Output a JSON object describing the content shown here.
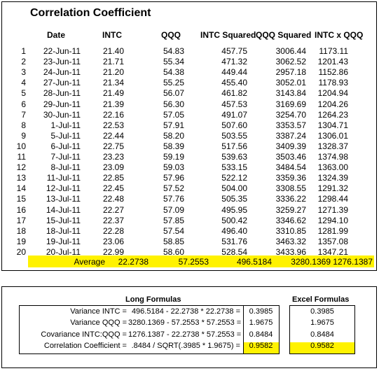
{
  "title": "Correlation Coefficient",
  "headers": [
    "Date",
    "INTC",
    "QQQ",
    "INTC Squared",
    "QQQ Squared",
    "INTC x QQQ"
  ],
  "rows": [
    {
      "n": "1",
      "date": "22-Jun-11",
      "intc": "21.40",
      "qqq": "54.83",
      "intc_sq": "457.75",
      "qqq_sq": "3006.44",
      "prod": "1173.11"
    },
    {
      "n": "2",
      "date": "23-Jun-11",
      "intc": "21.71",
      "qqq": "55.34",
      "intc_sq": "471.32",
      "qqq_sq": "3062.52",
      "prod": "1201.43"
    },
    {
      "n": "3",
      "date": "24-Jun-11",
      "intc": "21.20",
      "qqq": "54.38",
      "intc_sq": "449.44",
      "qqq_sq": "2957.18",
      "prod": "1152.86"
    },
    {
      "n": "4",
      "date": "27-Jun-11",
      "intc": "21.34",
      "qqq": "55.25",
      "intc_sq": "455.40",
      "qqq_sq": "3052.01",
      "prod": "1178.93"
    },
    {
      "n": "5",
      "date": "28-Jun-11",
      "intc": "21.49",
      "qqq": "56.07",
      "intc_sq": "461.82",
      "qqq_sq": "3143.84",
      "prod": "1204.94"
    },
    {
      "n": "6",
      "date": "29-Jun-11",
      "intc": "21.39",
      "qqq": "56.30",
      "intc_sq": "457.53",
      "qqq_sq": "3169.69",
      "prod": "1204.26"
    },
    {
      "n": "7",
      "date": "30-Jun-11",
      "intc": "22.16",
      "qqq": "57.05",
      "intc_sq": "491.07",
      "qqq_sq": "3254.70",
      "prod": "1264.23"
    },
    {
      "n": "8",
      "date": "1-Jul-11",
      "intc": "22.53",
      "qqq": "57.91",
      "intc_sq": "507.60",
      "qqq_sq": "3353.57",
      "prod": "1304.71"
    },
    {
      "n": "9",
      "date": "5-Jul-11",
      "intc": "22.44",
      "qqq": "58.20",
      "intc_sq": "503.55",
      "qqq_sq": "3387.24",
      "prod": "1306.01"
    },
    {
      "n": "10",
      "date": "6-Jul-11",
      "intc": "22.75",
      "qqq": "58.39",
      "intc_sq": "517.56",
      "qqq_sq": "3409.39",
      "prod": "1328.37"
    },
    {
      "n": "11",
      "date": "7-Jul-11",
      "intc": "23.23",
      "qqq": "59.19",
      "intc_sq": "539.63",
      "qqq_sq": "3503.46",
      "prod": "1374.98"
    },
    {
      "n": "12",
      "date": "8-Jul-11",
      "intc": "23.09",
      "qqq": "59.03",
      "intc_sq": "533.15",
      "qqq_sq": "3484.54",
      "prod": "1363.00"
    },
    {
      "n": "13",
      "date": "11-Jul-11",
      "intc": "22.85",
      "qqq": "57.96",
      "intc_sq": "522.12",
      "qqq_sq": "3359.36",
      "prod": "1324.39"
    },
    {
      "n": "14",
      "date": "12-Jul-11",
      "intc": "22.45",
      "qqq": "57.52",
      "intc_sq": "504.00",
      "qqq_sq": "3308.55",
      "prod": "1291.32"
    },
    {
      "n": "15",
      "date": "13-Jul-11",
      "intc": "22.48",
      "qqq": "57.76",
      "intc_sq": "505.35",
      "qqq_sq": "3336.22",
      "prod": "1298.44"
    },
    {
      "n": "16",
      "date": "14-Jul-11",
      "intc": "22.27",
      "qqq": "57.09",
      "intc_sq": "495.95",
      "qqq_sq": "3259.27",
      "prod": "1271.39"
    },
    {
      "n": "17",
      "date": "15-Jul-11",
      "intc": "22.37",
      "qqq": "57.85",
      "intc_sq": "500.42",
      "qqq_sq": "3346.62",
      "prod": "1294.10"
    },
    {
      "n": "18",
      "date": "18-Jul-11",
      "intc": "22.28",
      "qqq": "57.54",
      "intc_sq": "496.40",
      "qqq_sq": "3310.85",
      "prod": "1281.99"
    },
    {
      "n": "19",
      "date": "19-Jul-11",
      "intc": "23.06",
      "qqq": "58.85",
      "intc_sq": "531.76",
      "qqq_sq": "3463.32",
      "prod": "1357.08"
    },
    {
      "n": "20",
      "date": "20-Jul-11",
      "intc": "22.99",
      "qqq": "58.60",
      "intc_sq": "528.54",
      "qqq_sq": "3433.96",
      "prod": "1347.21"
    }
  ],
  "average": {
    "label": "Average",
    "intc": "22.2738",
    "qqq": "57.2553",
    "intc_sq": "496.5184",
    "qqq_sq": "3280.1369",
    "prod": "1276.1387"
  },
  "long_formulas": {
    "title": "Long Formulas",
    "rows": [
      {
        "label": "Variance INTC =",
        "formula": "496.5184 - 22.2738 * 22.2738 =",
        "value": "0.3985"
      },
      {
        "label": "Variance QQQ =",
        "formula": "3280.1369 - 57.2553 * 57.2553 =",
        "value": "1.9675"
      },
      {
        "label": "Covariance INTC:QQQ =",
        "formula": "1276.1387 - 22.2738 * 57.2553 =",
        "value": "0.8484"
      },
      {
        "label": "Correlation Coefficient =",
        "formula": ".8484 / SQRT(.3985 * 1.9675) =",
        "value": "0.9582"
      }
    ]
  },
  "excel_formulas": {
    "title": "Excel Formulas",
    "values": [
      "0.3985",
      "1.9675",
      "0.8484",
      "0.9582"
    ]
  },
  "colors": {
    "highlight": "#fff200",
    "border": "#000000"
  }
}
